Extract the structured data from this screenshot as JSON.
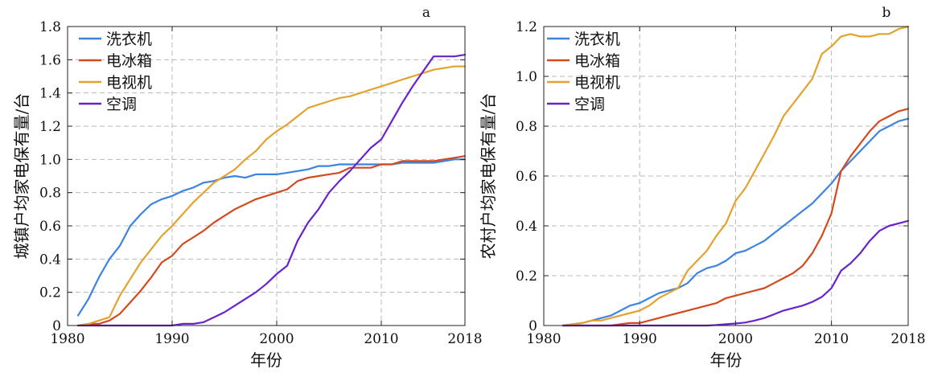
{
  "chart_data": [
    {
      "type": "line",
      "panel_label": "a",
      "xlabel": "年份",
      "ylabel": "城镇户均家电保有量/台",
      "xlim": [
        1980,
        2018
      ],
      "ylim": [
        0,
        1.8
      ],
      "xticks": [
        1980,
        1990,
        2000,
        2010,
        2018
      ],
      "yticks": [
        0,
        0.2,
        0.4,
        0.6,
        0.8,
        1.0,
        1.2,
        1.4,
        1.6,
        1.8
      ],
      "ytick_labels": [
        "0",
        "0.2",
        "0.4",
        "0.6",
        "0.8",
        "1.0",
        "1.2",
        "1.4",
        "1.6",
        "1.8"
      ],
      "grid": true,
      "legend": "top-left",
      "series": [
        {
          "name": "洗衣机",
          "color": "#3c84e0",
          "x": [
            1981,
            1982,
            1983,
            1984,
            1985,
            1986,
            1987,
            1988,
            1989,
            1990,
            1991,
            1992,
            1993,
            1994,
            1995,
            1996,
            1997,
            1998,
            1999,
            2000,
            2001,
            2002,
            2003,
            2004,
            2005,
            2006,
            2007,
            2008,
            2009,
            2010,
            2011,
            2012,
            2013,
            2014,
            2015,
            2016,
            2017,
            2018
          ],
          "y": [
            0.06,
            0.16,
            0.29,
            0.4,
            0.48,
            0.6,
            0.67,
            0.73,
            0.76,
            0.78,
            0.81,
            0.83,
            0.86,
            0.87,
            0.89,
            0.9,
            0.89,
            0.91,
            0.91,
            0.91,
            0.92,
            0.93,
            0.94,
            0.96,
            0.96,
            0.97,
            0.97,
            0.97,
            0.97,
            0.97,
            0.97,
            0.98,
            0.98,
            0.98,
            0.98,
            0.99,
            1.0,
            1.0
          ]
        },
        {
          "name": "电冰箱",
          "color": "#d24a1e",
          "x": [
            1981,
            1982,
            1983,
            1984,
            1985,
            1986,
            1987,
            1988,
            1989,
            1990,
            1991,
            1992,
            1993,
            1994,
            1995,
            1996,
            1997,
            1998,
            1999,
            2000,
            2001,
            2002,
            2003,
            2004,
            2005,
            2006,
            2007,
            2008,
            2009,
            2010,
            2011,
            2012,
            2013,
            2014,
            2015,
            2016,
            2017,
            2018
          ],
          "y": [
            0.0,
            0.01,
            0.01,
            0.03,
            0.07,
            0.14,
            0.21,
            0.29,
            0.38,
            0.42,
            0.49,
            0.53,
            0.57,
            0.62,
            0.66,
            0.7,
            0.73,
            0.76,
            0.78,
            0.8,
            0.82,
            0.87,
            0.89,
            0.9,
            0.91,
            0.92,
            0.95,
            0.95,
            0.95,
            0.97,
            0.97,
            0.99,
            0.99,
            0.99,
            0.99,
            1.0,
            1.01,
            1.02
          ]
        },
        {
          "name": "电视机",
          "color": "#e3a22e",
          "x": [
            1981,
            1982,
            1983,
            1984,
            1985,
            1986,
            1987,
            1988,
            1989,
            1990,
            1991,
            1992,
            1993,
            1994,
            1995,
            1996,
            1997,
            1998,
            1999,
            2000,
            2001,
            2002,
            2003,
            2004,
            2005,
            2006,
            2007,
            2008,
            2009,
            2010,
            2011,
            2012,
            2013,
            2014,
            2015,
            2016,
            2017,
            2018
          ],
          "y": [
            0.0,
            0.01,
            0.03,
            0.05,
            0.18,
            0.28,
            0.38,
            0.46,
            0.54,
            0.6,
            0.67,
            0.74,
            0.8,
            0.86,
            0.9,
            0.94,
            1.0,
            1.05,
            1.12,
            1.17,
            1.21,
            1.26,
            1.31,
            1.33,
            1.35,
            1.37,
            1.38,
            1.4,
            1.42,
            1.44,
            1.46,
            1.48,
            1.5,
            1.52,
            1.54,
            1.55,
            1.56,
            1.56
          ]
        },
        {
          "name": "空调",
          "color": "#6a22cc",
          "x": [
            1981,
            1982,
            1983,
            1984,
            1985,
            1986,
            1987,
            1988,
            1989,
            1990,
            1991,
            1992,
            1993,
            1994,
            1995,
            1996,
            1997,
            1998,
            1999,
            2000,
            2001,
            2002,
            2003,
            2004,
            2005,
            2006,
            2007,
            2008,
            2009,
            2010,
            2011,
            2012,
            2013,
            2014,
            2015,
            2016,
            2017,
            2018
          ],
          "y": [
            0,
            0,
            0,
            0,
            0,
            0,
            0,
            0,
            0,
            0.0,
            0.01,
            0.01,
            0.02,
            0.05,
            0.08,
            0.12,
            0.16,
            0.2,
            0.25,
            0.31,
            0.36,
            0.51,
            0.62,
            0.7,
            0.8,
            0.87,
            0.93,
            1.0,
            1.07,
            1.12,
            1.23,
            1.34,
            1.44,
            1.53,
            1.62,
            1.62,
            1.62,
            1.63
          ]
        }
      ]
    },
    {
      "type": "line",
      "panel_label": "b",
      "xlabel": "年份",
      "ylabel": "农村户均家电保有量/台",
      "xlim": [
        1980,
        2018
      ],
      "ylim": [
        0,
        1.2
      ],
      "xticks": [
        1980,
        1990,
        2000,
        2010,
        2018
      ],
      "yticks": [
        0,
        0.2,
        0.4,
        0.6,
        0.8,
        1.0,
        1.2
      ],
      "ytick_labels": [
        "0",
        "0.2",
        "0.4",
        "0.6",
        "0.8",
        "1.0",
        "1.2"
      ],
      "grid": true,
      "legend": "top-left",
      "series": [
        {
          "name": "洗衣机",
          "color": "#3c84e0",
          "x": [
            1982,
            1983,
            1984,
            1985,
            1986,
            1987,
            1988,
            1989,
            1990,
            1991,
            1992,
            1993,
            1994,
            1995,
            1996,
            1997,
            1998,
            1999,
            2000,
            2001,
            2002,
            2003,
            2004,
            2005,
            2006,
            2007,
            2008,
            2009,
            2010,
            2011,
            2012,
            2013,
            2014,
            2015,
            2016,
            2017,
            2018
          ],
          "y": [
            0.0,
            0.005,
            0.01,
            0.02,
            0.03,
            0.04,
            0.06,
            0.08,
            0.09,
            0.11,
            0.13,
            0.14,
            0.15,
            0.17,
            0.21,
            0.23,
            0.24,
            0.26,
            0.29,
            0.3,
            0.32,
            0.34,
            0.37,
            0.4,
            0.43,
            0.46,
            0.49,
            0.53,
            0.57,
            0.62,
            0.66,
            0.7,
            0.74,
            0.78,
            0.8,
            0.82,
            0.83
          ]
        },
        {
          "name": "电冰箱",
          "color": "#d24a1e",
          "x": [
            1982,
            1983,
            1984,
            1985,
            1986,
            1987,
            1988,
            1989,
            1990,
            1991,
            1992,
            1993,
            1994,
            1995,
            1996,
            1997,
            1998,
            1999,
            2000,
            2001,
            2002,
            2003,
            2004,
            2005,
            2006,
            2007,
            2008,
            2009,
            2010,
            2011,
            2012,
            2013,
            2014,
            2015,
            2016,
            2017,
            2018
          ],
          "y": [
            0,
            0,
            0,
            0,
            0,
            0,
            0.005,
            0.01,
            0.01,
            0.02,
            0.03,
            0.04,
            0.05,
            0.06,
            0.07,
            0.08,
            0.09,
            0.11,
            0.12,
            0.13,
            0.14,
            0.15,
            0.17,
            0.19,
            0.21,
            0.24,
            0.29,
            0.36,
            0.45,
            0.62,
            0.68,
            0.73,
            0.78,
            0.82,
            0.84,
            0.86,
            0.87
          ]
        },
        {
          "name": "电视机",
          "color": "#e3a22e",
          "x": [
            1982,
            1983,
            1984,
            1985,
            1986,
            1987,
            1988,
            1989,
            1990,
            1991,
            1992,
            1993,
            1994,
            1995,
            1996,
            1997,
            1998,
            1999,
            2000,
            2001,
            2002,
            2003,
            2004,
            2005,
            2006,
            2007,
            2008,
            2009,
            2010,
            2011,
            2012,
            2013,
            2014,
            2015,
            2016,
            2017,
            2018
          ],
          "y": [
            0.0,
            0.005,
            0.01,
            0.02,
            0.02,
            0.03,
            0.04,
            0.05,
            0.06,
            0.08,
            0.11,
            0.13,
            0.15,
            0.22,
            0.26,
            0.3,
            0.36,
            0.41,
            0.5,
            0.55,
            0.62,
            0.69,
            0.76,
            0.84,
            0.89,
            0.94,
            0.99,
            1.09,
            1.12,
            1.16,
            1.17,
            1.16,
            1.16,
            1.17,
            1.17,
            1.19,
            1.2
          ]
        },
        {
          "name": "空调",
          "color": "#6a22cc",
          "x": [
            1982,
            1983,
            1984,
            1985,
            1986,
            1987,
            1988,
            1989,
            1990,
            1991,
            1992,
            1993,
            1994,
            1995,
            1996,
            1997,
            1998,
            1999,
            2000,
            2001,
            2002,
            2003,
            2004,
            2005,
            2006,
            2007,
            2008,
            2009,
            2010,
            2011,
            2012,
            2013,
            2014,
            2015,
            2016,
            2017,
            2018
          ],
          "y": [
            0,
            0,
            0,
            0,
            0,
            0,
            0,
            0,
            0,
            0,
            0,
            0,
            0,
            0,
            0,
            0,
            0.002,
            0.005,
            0.008,
            0.012,
            0.02,
            0.03,
            0.045,
            0.06,
            0.07,
            0.08,
            0.095,
            0.115,
            0.15,
            0.22,
            0.25,
            0.29,
            0.34,
            0.38,
            0.4,
            0.41,
            0.42
          ]
        }
      ]
    }
  ]
}
